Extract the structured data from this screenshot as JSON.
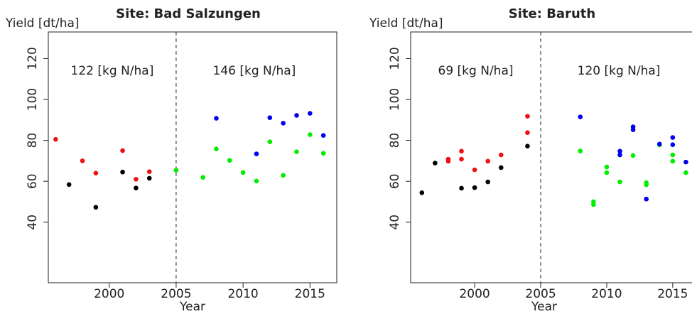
{
  "chart_data": [
    {
      "type": "scatter",
      "title": "Site: Bad Salzungen",
      "ylabel": "Yield [dt/ha]",
      "xlabel": "Year",
      "xlim": [
        1995.45,
        2017.0
      ],
      "ylim": [
        10.4,
        133
      ],
      "xticks": [
        2000,
        2005,
        2010,
        2015
      ],
      "yticks": [
        40,
        60,
        80,
        100,
        120
      ],
      "vline": 2005,
      "annotations": [
        "122 [kg N/ha]",
        "146 [kg N/ha]"
      ],
      "series": [
        {
          "color": "#ee1111",
          "x": [
            1996,
            1998,
            1999,
            2001,
            2002,
            2003
          ],
          "values": [
            80.5,
            70,
            64,
            75,
            61,
            64.7
          ]
        },
        {
          "color": "#000000",
          "x": [
            1997,
            1999,
            2001,
            2002,
            2003
          ],
          "values": [
            58.4,
            47.3,
            64.5,
            56.7,
            61.5
          ]
        },
        {
          "color": "#00ee00",
          "x": [
            2005,
            2007,
            2008,
            2009,
            2010,
            2011,
            2012,
            2013,
            2014,
            2015,
            2016
          ],
          "values": [
            65.4,
            61.9,
            75.8,
            70.2,
            64.3,
            60.1,
            79.3,
            62.9,
            74.4,
            82.8,
            73.7
          ]
        },
        {
          "color": "#0000ee",
          "x": [
            2008,
            2011,
            2012,
            2013,
            2014,
            2015,
            2016
          ],
          "values": [
            90.8,
            73.4,
            91.1,
            88.4,
            92.2,
            93.2,
            82.4
          ]
        }
      ]
    },
    {
      "type": "scatter",
      "title": "Site: Baruth",
      "ylabel": "Yield [dt/ha]",
      "xlabel": "Year",
      "xlim": [
        1995.15,
        2017.0
      ],
      "ylim": [
        10.4,
        133
      ],
      "xticks": [
        2000,
        2005,
        2010,
        2015
      ],
      "yticks": [
        40,
        60,
        80,
        100,
        120
      ],
      "vline": 2005,
      "annotations": [
        "69 [kg N/ha]",
        "120 [kg N/ha]"
      ],
      "series": [
        {
          "color": "#ee1111",
          "x": [
            1998,
            1998,
            1999,
            1999,
            2000,
            2001,
            2002,
            2004,
            2004
          ],
          "values": [
            70.8,
            69.8,
            74.7,
            70.8,
            65.6,
            69.8,
            72.9,
            83.8,
            91.8
          ]
        },
        {
          "color": "#000000",
          "x": [
            1996,
            1997,
            1999,
            2000,
            2001,
            2002,
            2004
          ],
          "values": [
            54.4,
            68.9,
            56.6,
            56.9,
            59.7,
            66.7,
            77.2
          ]
        },
        {
          "color": "#00ee00",
          "x": [
            2008,
            2009,
            2009,
            2010,
            2010,
            2011,
            2012,
            2013,
            2013,
            2014,
            2015,
            2015,
            2016
          ],
          "values": [
            74.8,
            48.6,
            50,
            67,
            64.2,
            59.7,
            72.6,
            58.3,
            59.3,
            77.8,
            72.9,
            69.8,
            64.2
          ]
        },
        {
          "color": "#0000ee",
          "x": [
            2008,
            2011,
            2011,
            2012,
            2012,
            2013,
            2014,
            2015,
            2015,
            2016
          ],
          "values": [
            91.5,
            74.7,
            72.9,
            86.6,
            85.2,
            51.3,
            78.2,
            81.4,
            77.9,
            69.4
          ]
        }
      ]
    }
  ]
}
